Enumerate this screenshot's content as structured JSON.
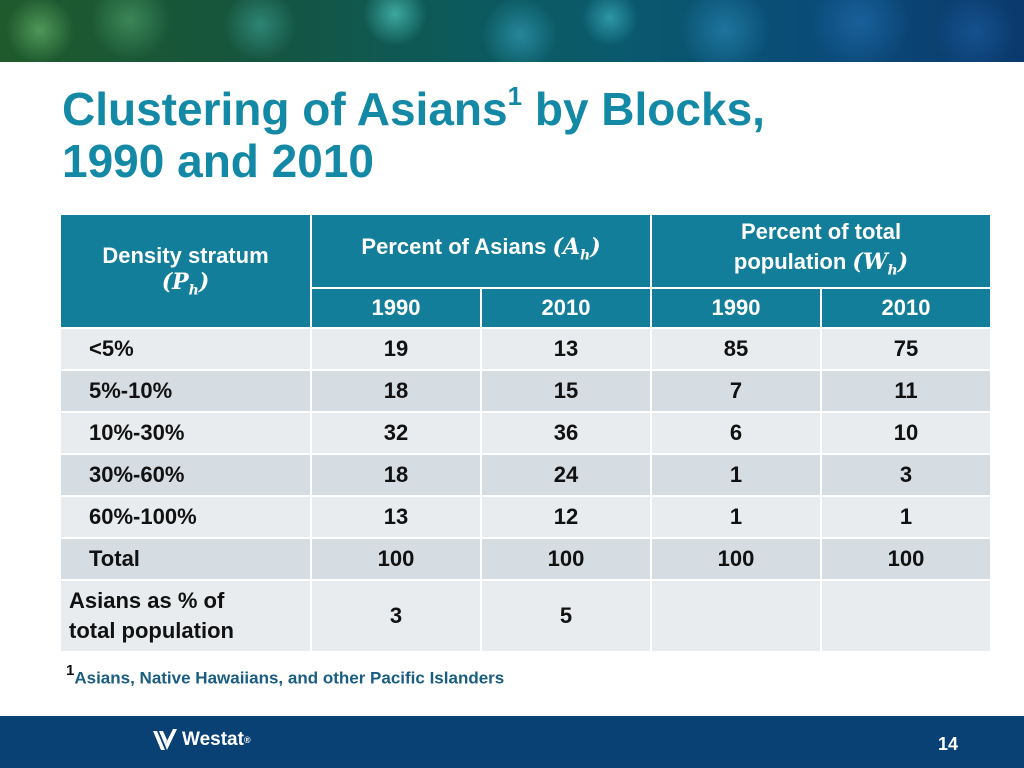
{
  "title": {
    "line1": "Clustering of Asians",
    "sup": "1",
    "line1b": " by Blocks,",
    "line2": "1990 and 2010"
  },
  "table": {
    "stratum_header": "Density stratum",
    "stratum_symbol": "(P",
    "stratum_sub": "h",
    "stratum_close": ")",
    "asians_header": "Percent of Asians ",
    "asians_symbol": "(A",
    "asians_sub": "h",
    "asians_close": ")",
    "total_header_line1": "Percent of total",
    "total_header_line2": "population  ",
    "total_symbol": "(W",
    "total_sub": "h",
    "total_close": ")",
    "years": [
      "1990",
      "2010",
      "1990",
      "2010"
    ],
    "rows": [
      {
        "label": "<5%",
        "values": [
          "19",
          "13",
          "85",
          "75"
        ]
      },
      {
        "label": "5%-10%",
        "values": [
          "18",
          "15",
          "7",
          "11"
        ]
      },
      {
        "label": "10%-30%",
        "values": [
          "32",
          "36",
          "6",
          "10"
        ]
      },
      {
        "label": "30%-60%",
        "values": [
          "18",
          "24",
          "1",
          "3"
        ]
      },
      {
        "label": "60%-100%",
        "values": [
          "13",
          "12",
          "1",
          "1"
        ]
      },
      {
        "label": "Total",
        "values": [
          "100",
          "100",
          "100",
          "100"
        ]
      }
    ],
    "last_row": {
      "label_line1": "Asians as % of",
      "label_line2": "total population",
      "values": [
        "3",
        "5",
        "",
        ""
      ]
    }
  },
  "footnote": {
    "marker": "1",
    "text": "Asians, Native Hawaiians, and other Pacific Islanders"
  },
  "footer": {
    "logo_text": "Westat",
    "logo_mark": "®",
    "page_number": "14"
  },
  "colors": {
    "title": "#1489a6",
    "header_bg": "#137e99",
    "row_light": "#e8ecee",
    "row_dark": "#d6dde2",
    "footer_bg": "#0a4174",
    "footnote": "#1a5d82"
  }
}
